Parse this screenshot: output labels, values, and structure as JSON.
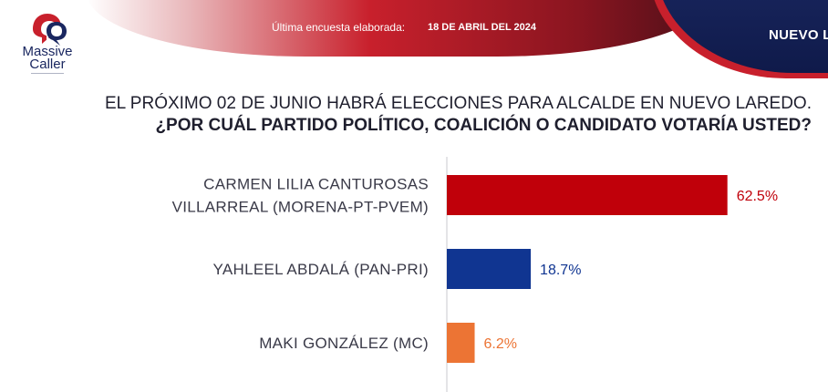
{
  "header": {
    "survey_label": "Última encuesta elaborada:",
    "survey_date": "18 DE ABRIL DEL 2024",
    "region": "NUEVO L"
  },
  "logo": {
    "line1": "Massive",
    "line2": "Caller"
  },
  "question": {
    "line1": "EL PRÓXIMO 02 DE JUNIO HABRÁ ELECCIONES PARA ALCALDE EN NUEVO LAREDO.",
    "line2": "¿POR CUÁL PARTIDO POLÍTICO, COALICIÓN O CANDIDATO VOTARÍA USTED?"
  },
  "chart_data": {
    "type": "bar",
    "orientation": "horizontal",
    "categories": [
      [
        "CARMEN LILIA CANTUROSAS",
        "VILLARREAL (MORENA-PT-PVEM)"
      ],
      [
        "YAHLEEL ABDALÁ (PAN-PRI)"
      ],
      [
        "MAKI GONZÁLEZ (MC)"
      ]
    ],
    "values": [
      62.5,
      18.7,
      6.2
    ],
    "value_labels": [
      "62.5%",
      "18.7%",
      "6.2%"
    ],
    "colors": [
      "#c0000a",
      "#103591",
      "#ec7434"
    ],
    "xlim": [
      0,
      65
    ],
    "grid": false,
    "legend": "none"
  },
  "colors": {
    "brand_red": "#c8202c",
    "brand_navy": "#1a2760"
  }
}
